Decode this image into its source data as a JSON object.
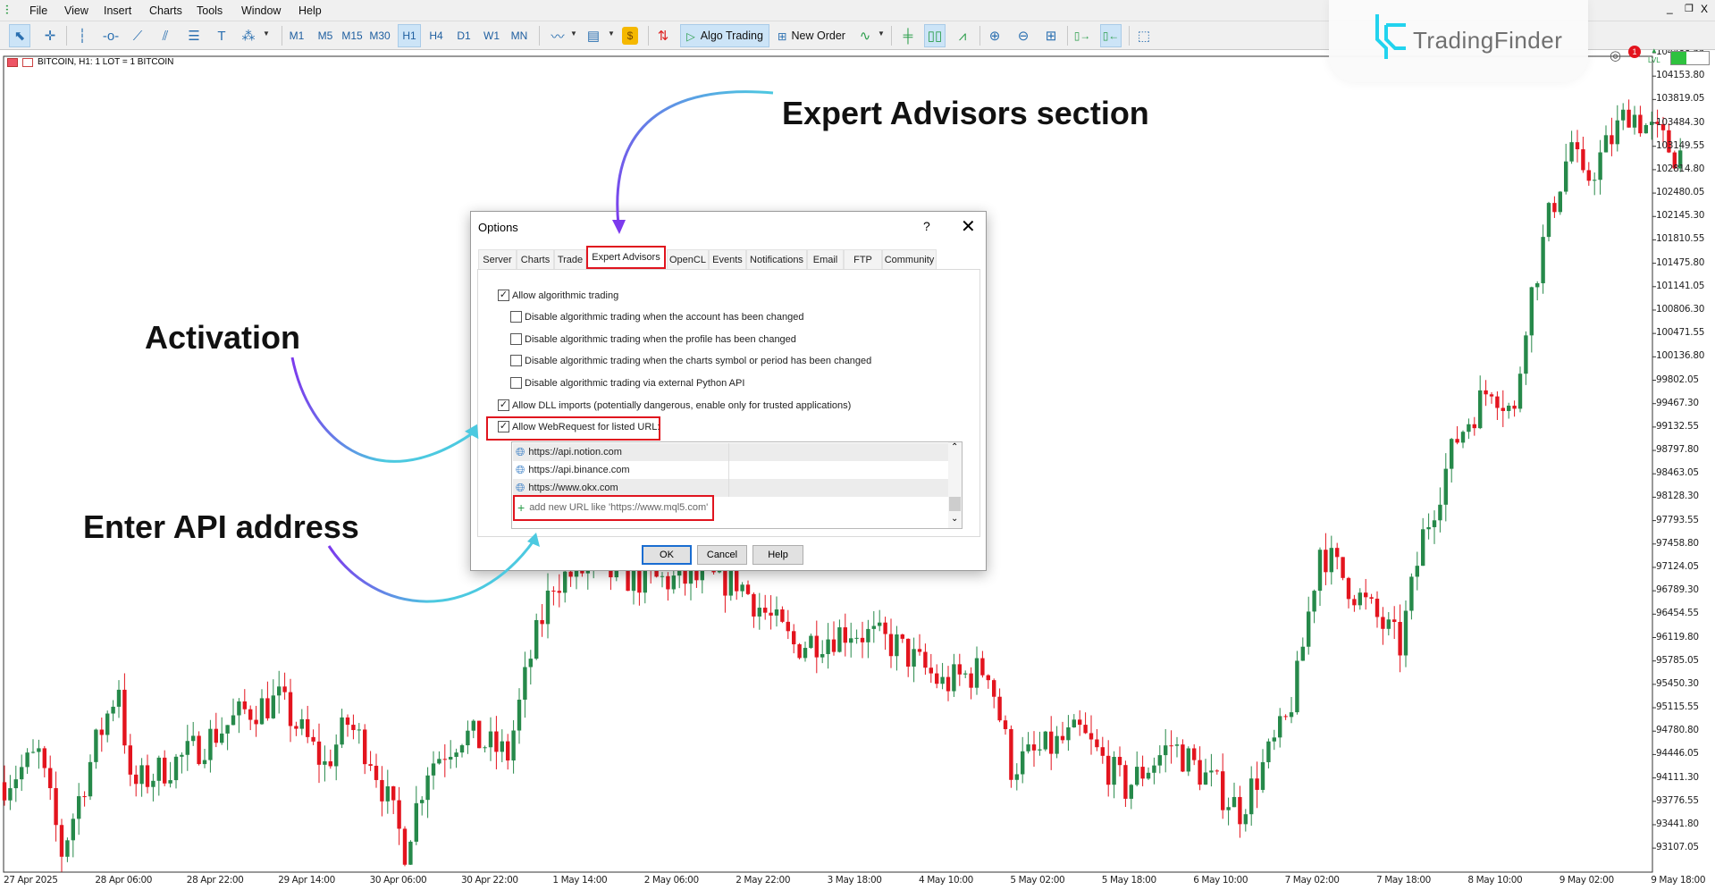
{
  "menubar": {
    "items": [
      "File",
      "View",
      "Insert",
      "Charts",
      "Tools",
      "Window",
      "Help"
    ],
    "window_controls": [
      "minimize-icon",
      "restore-icon",
      "close-icon"
    ]
  },
  "toolbar": {
    "timeframes": [
      "M1",
      "M5",
      "M15",
      "M30",
      "H1",
      "H4",
      "D1",
      "W1",
      "MN"
    ],
    "selected_timeframe": "H1",
    "algo_trading_label": "Algo Trading",
    "new_order_label": "New Order",
    "notification_count": "1",
    "level_label": "LVL",
    "icons": [
      "cursor-icon",
      "crosshair-icon",
      "vertical-line-icon",
      "horizontal-line-icon",
      "trendline-icon",
      "channel-icon",
      "fibonacci-icon",
      "text-icon",
      "shapes-icon",
      "chart-type-icon",
      "template-icon",
      "market-icon",
      "one-click-trading-icon",
      "algo-play-icon",
      "new-order-icon",
      "signals-icon",
      "bar-chart-icon",
      "candlestick-icon",
      "line-chart-icon",
      "zoom-in-icon",
      "zoom-out-icon",
      "tile-windows-icon",
      "auto-scroll-icon",
      "chart-shift-icon",
      "screenshot-icon"
    ]
  },
  "logo": {
    "text": "TradingFinder",
    "color": "#22d3ee"
  },
  "chart": {
    "header": "BITCOIN, H1:  1 LOT = 1 BITCOIN"
  },
  "chart_data": {
    "type": "candlestick",
    "symbol": "BITCOIN",
    "timeframe": "H1",
    "bull_color": "#26894a",
    "bear_color": "#e3141e",
    "price_axis_labels": [
      "104488.55",
      "104153.80",
      "103819.05",
      "103484.30",
      "103149.55",
      "102814.80",
      "102480.05",
      "102145.30",
      "101810.55",
      "101475.80",
      "101141.05",
      "100806.30",
      "100471.55",
      "100136.80",
      "99802.05",
      "99467.30",
      "99132.55",
      "98797.80",
      "98463.05",
      "98128.30",
      "97793.55",
      "97458.80",
      "97124.05",
      "96789.30",
      "96454.55",
      "96119.80",
      "95785.05",
      "95450.30",
      "95115.55",
      "94780.80",
      "94446.05",
      "94111.30",
      "93776.55",
      "93441.80",
      "93107.05"
    ],
    "time_axis_labels": [
      "27 Apr 2025",
      "28 Apr 06:00",
      "28 Apr 22:00",
      "29 Apr 14:00",
      "30 Apr 06:00",
      "30 Apr 22:00",
      "1 May 14:00",
      "2 May 06:00",
      "2 May 22:00",
      "3 May 18:00",
      "4 May 10:00",
      "5 May 02:00",
      "5 May 18:00",
      "6 May 10:00",
      "7 May 02:00",
      "7 May 18:00",
      "8 May 10:00",
      "9 May 02:00",
      "9 May 18:00"
    ],
    "ylim": [
      93000,
      104600
    ],
    "approx_close_path": [
      [
        "27 Apr 14:00",
        94050
      ],
      [
        "27 Apr 20:00",
        94440
      ],
      [
        "28 Apr 00:00",
        93050
      ],
      [
        "28 Apr 06:00",
        94590
      ],
      [
        "28 Apr 10:00",
        95460
      ],
      [
        "28 Apr 12:00",
        93970
      ],
      [
        "28 Apr 22:00",
        94440
      ],
      [
        "29 Apr 08:00",
        95060
      ],
      [
        "29 Apr 14:00",
        95220
      ],
      [
        "29 Apr 22:00",
        94280
      ],
      [
        "30 Apr 02:00",
        94900
      ],
      [
        "30 Apr 06:00",
        94440
      ],
      [
        "30 Apr 12:00",
        93110
      ],
      [
        "30 Apr 16:00",
        94280
      ],
      [
        "30 Apr 22:00",
        94750
      ],
      [
        "1 May 06:00",
        94440
      ],
      [
        "1 May 10:00",
        95850
      ],
      [
        "1 May 14:00",
        96940
      ],
      [
        "1 May 20:00",
        97100
      ],
      [
        "2 May 06:00",
        96940
      ],
      [
        "2 May 22:00",
        96940
      ],
      [
        "3 May 08:00",
        96000
      ],
      [
        "3 May 18:00",
        96240
      ],
      [
        "4 May 02:00",
        96000
      ],
      [
        "4 May 10:00",
        95450
      ],
      [
        "4 May 18:00",
        95690
      ],
      [
        "4 May 22:00",
        94280
      ],
      [
        "5 May 02:00",
        94440
      ],
      [
        "5 May 10:00",
        94750
      ],
      [
        "5 May 18:00",
        93970
      ],
      [
        "6 May 02:00",
        94590
      ],
      [
        "6 May 10:00",
        93970
      ],
      [
        "6 May 14:00",
        93650
      ],
      [
        "6 May 22:00",
        94900
      ],
      [
        "7 May 00:00",
        95530
      ],
      [
        "7 May 02:00",
        96470
      ],
      [
        "7 May 04:00",
        97410
      ],
      [
        "7 May 10:00",
        96780
      ],
      [
        "7 May 18:00",
        96000
      ],
      [
        "7 May 22:00",
        97570
      ],
      [
        "8 May 04:00",
        98980
      ],
      [
        "8 May 10:00",
        99760
      ],
      [
        "8 May 14:00",
        99290
      ],
      [
        "8 May 16:00",
        100700
      ],
      [
        "8 May 20:00",
        102110
      ],
      [
        "9 May 00:00",
        103200
      ],
      [
        "9 May 02:00",
        102580
      ],
      [
        "9 May 10:00",
        103670
      ],
      [
        "9 May 18:00",
        103050
      ]
    ]
  },
  "dialog": {
    "title": "Options",
    "help_label": "?",
    "tabs": [
      "Server",
      "Charts",
      "Trade",
      "Expert Advisors",
      "OpenCL",
      "Events",
      "Notifications",
      "Email",
      "FTP",
      "Community"
    ],
    "active_tab": "Expert Advisors",
    "options": [
      {
        "label": "Allow algorithmic trading",
        "checked": true
      },
      {
        "label": "Disable algorithmic trading when the account has been changed",
        "checked": false
      },
      {
        "label": "Disable algorithmic trading when the profile has been changed",
        "checked": false
      },
      {
        "label": "Disable algorithmic trading when the charts symbol or period has been changed",
        "checked": false
      },
      {
        "label": "Disable algorithmic trading via external Python API",
        "checked": false
      },
      {
        "label": "Allow DLL imports (potentially dangerous, enable only for trusted applications)",
        "checked": true
      },
      {
        "label": "Allow WebRequest for listed URL:",
        "checked": true
      }
    ],
    "urls": [
      "https://api.notion.com",
      "https://api.binance.com",
      "https://www.okx.com"
    ],
    "add_url_placeholder": "add new URL like 'https://www.mql5.com'",
    "buttons": {
      "ok": "OK",
      "cancel": "Cancel",
      "help": "Help"
    },
    "highlight_color": "#e0141e"
  },
  "annotations": {
    "expert_advisors": "Expert Advisors section",
    "activation": "Activation",
    "enter_api": "Enter API address",
    "arrow_gradient": [
      "#7c3aed",
      "#4cc9e0"
    ]
  }
}
